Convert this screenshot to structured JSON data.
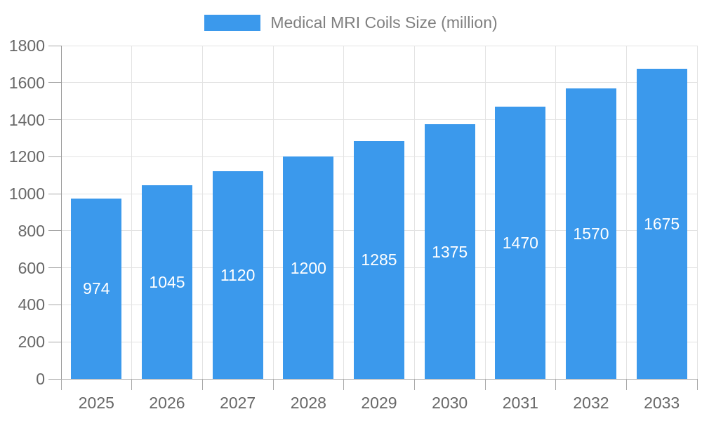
{
  "legend": {
    "label": "Medical MRI Coils Size (million)"
  },
  "colors": {
    "bar": "#3b99ec",
    "bar_label": "#ffffff",
    "axis_label": "#686868",
    "legend_label": "#808080",
    "gridline": "#e3e3e3",
    "y_axis_line": "#9a9a9a",
    "x_axis_line": "#b0b0b0",
    "tick_mark": "#a8a8a8",
    "background": "#ffffff"
  },
  "chart_data": {
    "type": "bar",
    "title": "Medical MRI Coils Size (million)",
    "categories": [
      "2025",
      "2026",
      "2027",
      "2028",
      "2029",
      "2030",
      "2031",
      "2032",
      "2033"
    ],
    "values": [
      974,
      1045,
      1120,
      1200,
      1285,
      1375,
      1470,
      1570,
      1675
    ],
    "series_name": "Medical MRI Coils Size (million)",
    "xlabel": "",
    "ylabel": "",
    "ylim": [
      0,
      1800
    ],
    "ytick_step": 200,
    "ytick_labels": [
      "0",
      "200",
      "400",
      "600",
      "800",
      "1000",
      "1200",
      "1400",
      "1600",
      "1800"
    ],
    "grid": true,
    "legend_position": "top-center",
    "bar_value_labels": "inside-center"
  }
}
